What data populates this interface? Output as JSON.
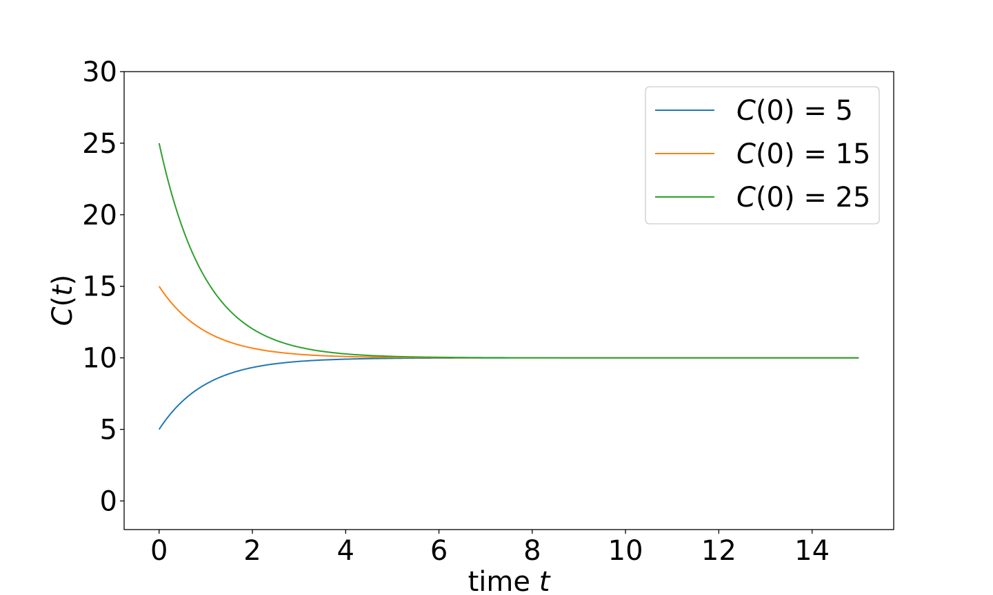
{
  "chart_data": {
    "type": "line",
    "xlabel_plain": "time ",
    "xlabel_var": "t",
    "ylabel_func": "C",
    "ylabel_var": "t",
    "xlim": [
      -0.75,
      15.75
    ],
    "ylim": [
      -2,
      30
    ],
    "xticks": [
      0,
      2,
      4,
      6,
      8,
      10,
      12,
      14
    ],
    "yticks": [
      0,
      5,
      10,
      15,
      20,
      25,
      30
    ],
    "legend_position": "upper right",
    "grid": false,
    "equilibrium": 10,
    "decay_rate": 1.0,
    "t_range": [
      0,
      15
    ],
    "series": [
      {
        "name_func": "C",
        "name_eq": "(0) = 5",
        "initial": 5,
        "color": "#1f77b4"
      },
      {
        "name_func": "C",
        "name_eq": "(0) = 15",
        "initial": 15,
        "color": "#ff7f0e"
      },
      {
        "name_func": "C",
        "name_eq": "(0) = 25",
        "initial": 25,
        "color": "#2ca02c"
      }
    ]
  }
}
